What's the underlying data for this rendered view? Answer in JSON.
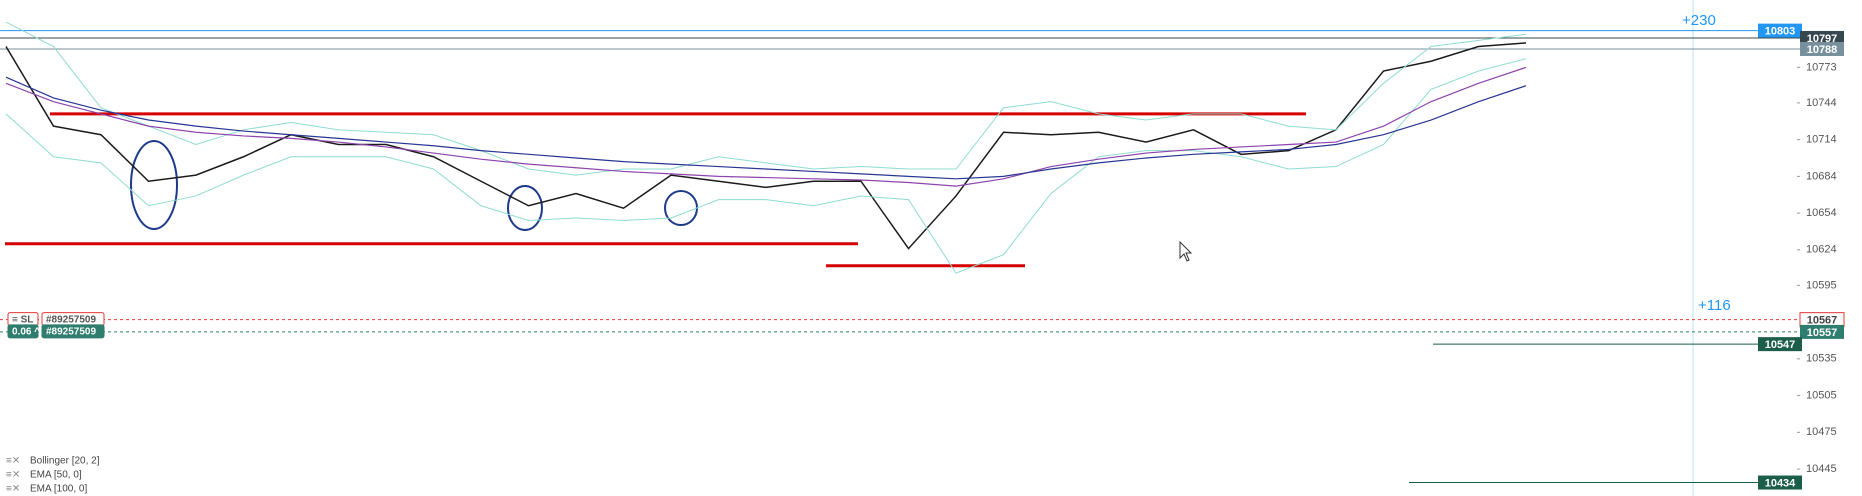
{
  "chart_data": {
    "type": "line",
    "ylim": [
      10423,
      10828
    ],
    "yticks": [
      10773,
      10744,
      10714,
      10684,
      10654,
      10624,
      10595,
      10535,
      10505,
      10475,
      10445
    ],
    "series": [
      {
        "color": "#1b1b1b",
        "values": [
          10790,
          10725,
          10718,
          10680,
          10685,
          10700,
          10718,
          10710,
          10710,
          10700,
          10680,
          10660,
          10670,
          10658,
          10685,
          10680,
          10675,
          10680,
          10680,
          10625,
          10668,
          10720,
          10718,
          10720,
          10712,
          10722,
          10702,
          10705,
          10722,
          10770,
          10778,
          10790,
          10793
        ]
      },
      {
        "name": "Bollinger [20, 2]",
        "color": "#8fdccf",
        "upper": [
          10810,
          10790,
          10740,
          10725,
          10710,
          10722,
          10728,
          10722,
          10720,
          10718,
          10705,
          10690,
          10685,
          10690,
          10690,
          10700,
          10695,
          10690,
          10692,
          10690,
          10690,
          10740,
          10745,
          10735,
          10730,
          10735,
          10735,
          10725,
          10722,
          10760,
          10790,
          10795,
          10800
        ],
        "lower": [
          10735,
          10700,
          10695,
          10660,
          10668,
          10685,
          10700,
          10700,
          10700,
          10690,
          10660,
          10648,
          10650,
          10648,
          10650,
          10665,
          10665,
          10660,
          10668,
          10665,
          10605,
          10620,
          10670,
          10700,
          10705,
          10705,
          10700,
          10690,
          10692,
          10710,
          10755,
          10770,
          10780
        ]
      },
      {
        "name": "EMA [50, 0]",
        "color": "#8e44ad",
        "values": [
          10760,
          10745,
          10735,
          10725,
          10720,
          10717,
          10715,
          10712,
          10708,
          10703,
          10698,
          10694,
          10691,
          10688,
          10686,
          10684,
          10683,
          10682,
          10681,
          10679,
          10676,
          10682,
          10692,
          10698,
          10703,
          10706,
          10708,
          10710,
          10712,
          10725,
          10745,
          10760,
          10773
        ]
      },
      {
        "name": "EMA [100, 0]",
        "color": "#283593",
        "values": [
          10765,
          10748,
          10738,
          10730,
          10725,
          10721,
          10718,
          10715,
          10712,
          10709,
          10705,
          10702,
          10699,
          10696,
          10694,
          10692,
          10690,
          10688,
          10686,
          10684,
          10682,
          10684,
          10690,
          10695,
          10699,
          10702,
          10704,
          10706,
          10710,
          10718,
          10730,
          10745,
          10758
        ]
      }
    ],
    "price_tags": [
      {
        "value": 10803,
        "color": "#2196f3",
        "line": "solid"
      },
      {
        "value": 10797,
        "color": "#37474f",
        "line": "solid"
      },
      {
        "value": 10788,
        "color": "#78909c",
        "line": "solid"
      },
      {
        "value": 10567,
        "color": "#e53935",
        "line": "dashed"
      },
      {
        "value": 10557,
        "color": "#2e7d6e",
        "line": "dashed"
      },
      {
        "value": 10547,
        "color": "#1b5e4a",
        "line": "solid"
      },
      {
        "value": 10434,
        "color": "#1b5e4a",
        "line": "solid"
      }
    ],
    "hlines": [
      {
        "value": 10735,
        "color": "#d50000"
      },
      {
        "value": 10629,
        "color": "#d50000"
      },
      {
        "value": 10611,
        "color": "#d50000"
      }
    ],
    "annotations": [
      "+230",
      "+116"
    ],
    "orders": [
      {
        "label": "≡ SL",
        "id": "#89257509"
      },
      {
        "label": "0.06 ^",
        "id": "#89257509"
      }
    ]
  }
}
